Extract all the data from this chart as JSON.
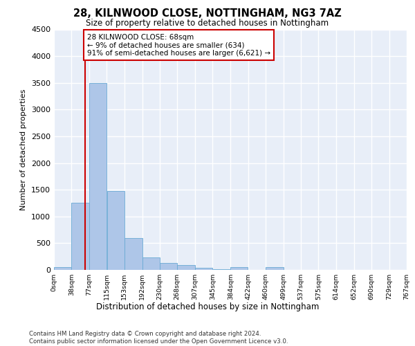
{
  "title_line1": "28, KILNWOOD CLOSE, NOTTINGHAM, NG3 7AZ",
  "title_line2": "Size of property relative to detached houses in Nottingham",
  "xlabel": "Distribution of detached houses by size in Nottingham",
  "ylabel": "Number of detached properties",
  "footnote": "Contains HM Land Registry data © Crown copyright and database right 2024.\nContains public sector information licensed under the Open Government Licence v3.0.",
  "annotation_line1": "28 KILNWOOD CLOSE: 68sqm",
  "annotation_line2": "← 9% of detached houses are smaller (634)",
  "annotation_line3": "91% of semi-detached houses are larger (6,621) →",
  "property_size": 68,
  "bin_edges": [
    0,
    38,
    77,
    115,
    153,
    192,
    230,
    268,
    307,
    345,
    384,
    422,
    460,
    499,
    537,
    575,
    614,
    652,
    690,
    729,
    767
  ],
  "bar_values": [
    50,
    1250,
    3500,
    1470,
    600,
    230,
    130,
    90,
    40,
    10,
    50,
    0,
    50,
    0,
    0,
    0,
    0,
    0,
    0,
    0
  ],
  "bar_color": "#aec6e8",
  "bar_edge_color": "#6aaad4",
  "vline_color": "#cc0000",
  "annotation_box_color": "#cc0000",
  "background_color": "#e8eef8",
  "grid_color": "#ffffff",
  "ylim": [
    0,
    4500
  ],
  "yticks": [
    0,
    500,
    1000,
    1500,
    2000,
    2500,
    3000,
    3500,
    4000,
    4500
  ]
}
